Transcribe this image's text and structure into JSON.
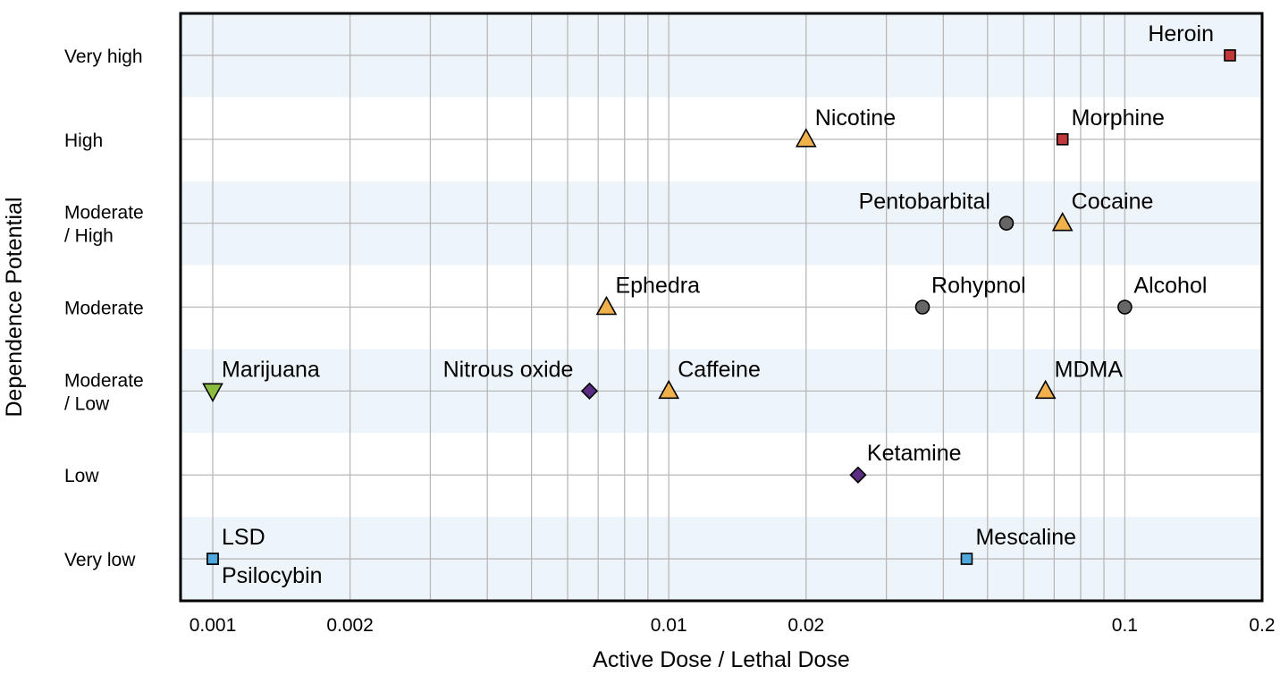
{
  "chart_data": {
    "type": "scatter",
    "title": "",
    "xlabel": "Active Dose / Lethal Dose",
    "ylabel": "Dependence Potential",
    "x_scale": "log",
    "xlim": [
      0.00085,
      0.2
    ],
    "x_ticks": [
      {
        "value": 0.001,
        "label": "0.001"
      },
      {
        "value": 0.002,
        "label": "0.002"
      },
      {
        "value": 0.01,
        "label": "0.01"
      },
      {
        "value": 0.02,
        "label": "0.02"
      },
      {
        "value": 0.1,
        "label": "0.1"
      },
      {
        "value": 0.2,
        "label": "0.2"
      }
    ],
    "y_categories": [
      {
        "level": 1,
        "lines": [
          "Very low"
        ]
      },
      {
        "level": 2,
        "lines": [
          "Low"
        ]
      },
      {
        "level": 3,
        "lines": [
          "Moderate",
          "/ Low"
        ]
      },
      {
        "level": 4,
        "lines": [
          "Moderate"
        ]
      },
      {
        "level": 5,
        "lines": [
          "Moderate",
          "/ High"
        ]
      },
      {
        "level": 6,
        "lines": [
          "High"
        ]
      },
      {
        "level": 7,
        "lines": [
          "Very high"
        ]
      }
    ],
    "ylim": [
      0.5,
      7.5
    ],
    "grid": true,
    "marker_colors": {
      "orange": "#f0b04b",
      "red": "#c1383a",
      "gray": "#666666",
      "purple": "#5b2d82",
      "green": "#8bbb3f",
      "blue": "#4fa7dc"
    },
    "band_color": "#edf5fb",
    "points": [
      {
        "label": "Heroin",
        "x": 0.17,
        "y": 7,
        "marker": "square",
        "color": "red",
        "label_pos": "above-left"
      },
      {
        "label": "Nicotine",
        "x": 0.02,
        "y": 6,
        "marker": "triangle-up",
        "color": "orange",
        "label_pos": "above-right"
      },
      {
        "label": "Morphine",
        "x": 0.073,
        "y": 6,
        "marker": "square",
        "color": "red",
        "label_pos": "above-right"
      },
      {
        "label": "Pentobarbital",
        "x": 0.055,
        "y": 5,
        "marker": "circle",
        "color": "gray",
        "label_pos": "above-left"
      },
      {
        "label": "Cocaine",
        "x": 0.073,
        "y": 5,
        "marker": "triangle-up",
        "color": "orange",
        "label_pos": "above-right"
      },
      {
        "label": "Ephedra",
        "x": 0.0073,
        "y": 4,
        "marker": "triangle-up",
        "color": "orange",
        "label_pos": "above-right"
      },
      {
        "label": "Rohypnol",
        "x": 0.036,
        "y": 4,
        "marker": "circle",
        "color": "gray",
        "label_pos": "above-right"
      },
      {
        "label": "Alcohol",
        "x": 0.1,
        "y": 4,
        "marker": "circle",
        "color": "gray",
        "label_pos": "above-right"
      },
      {
        "label": "Marijuana",
        "x": 0.001,
        "y": 3,
        "marker": "triangle-down",
        "color": "green",
        "label_pos": "above-right"
      },
      {
        "label": "Nitrous oxide",
        "x": 0.0067,
        "y": 3,
        "marker": "diamond",
        "color": "purple",
        "label_pos": "above-left"
      },
      {
        "label": "Caffeine",
        "x": 0.01,
        "y": 3,
        "marker": "triangle-up",
        "color": "orange",
        "label_pos": "above-right"
      },
      {
        "label": "MDMA",
        "x": 0.067,
        "y": 3,
        "marker": "triangle-up",
        "color": "orange",
        "label_pos": "above-right"
      },
      {
        "label": "Ketamine",
        "x": 0.026,
        "y": 2,
        "marker": "diamond",
        "color": "purple",
        "label_pos": "above-right"
      },
      {
        "label": "LSD",
        "x": 0.001,
        "y": 1,
        "marker": "square",
        "color": "blue",
        "label_pos": "above-right"
      },
      {
        "label": "Psilocybin",
        "x": 0.001,
        "y": 1,
        "marker": "square",
        "color": "blue",
        "label_pos": "below-right"
      },
      {
        "label": "Mescaline",
        "x": 0.045,
        "y": 1,
        "marker": "square",
        "color": "blue",
        "label_pos": "above-right"
      }
    ]
  }
}
